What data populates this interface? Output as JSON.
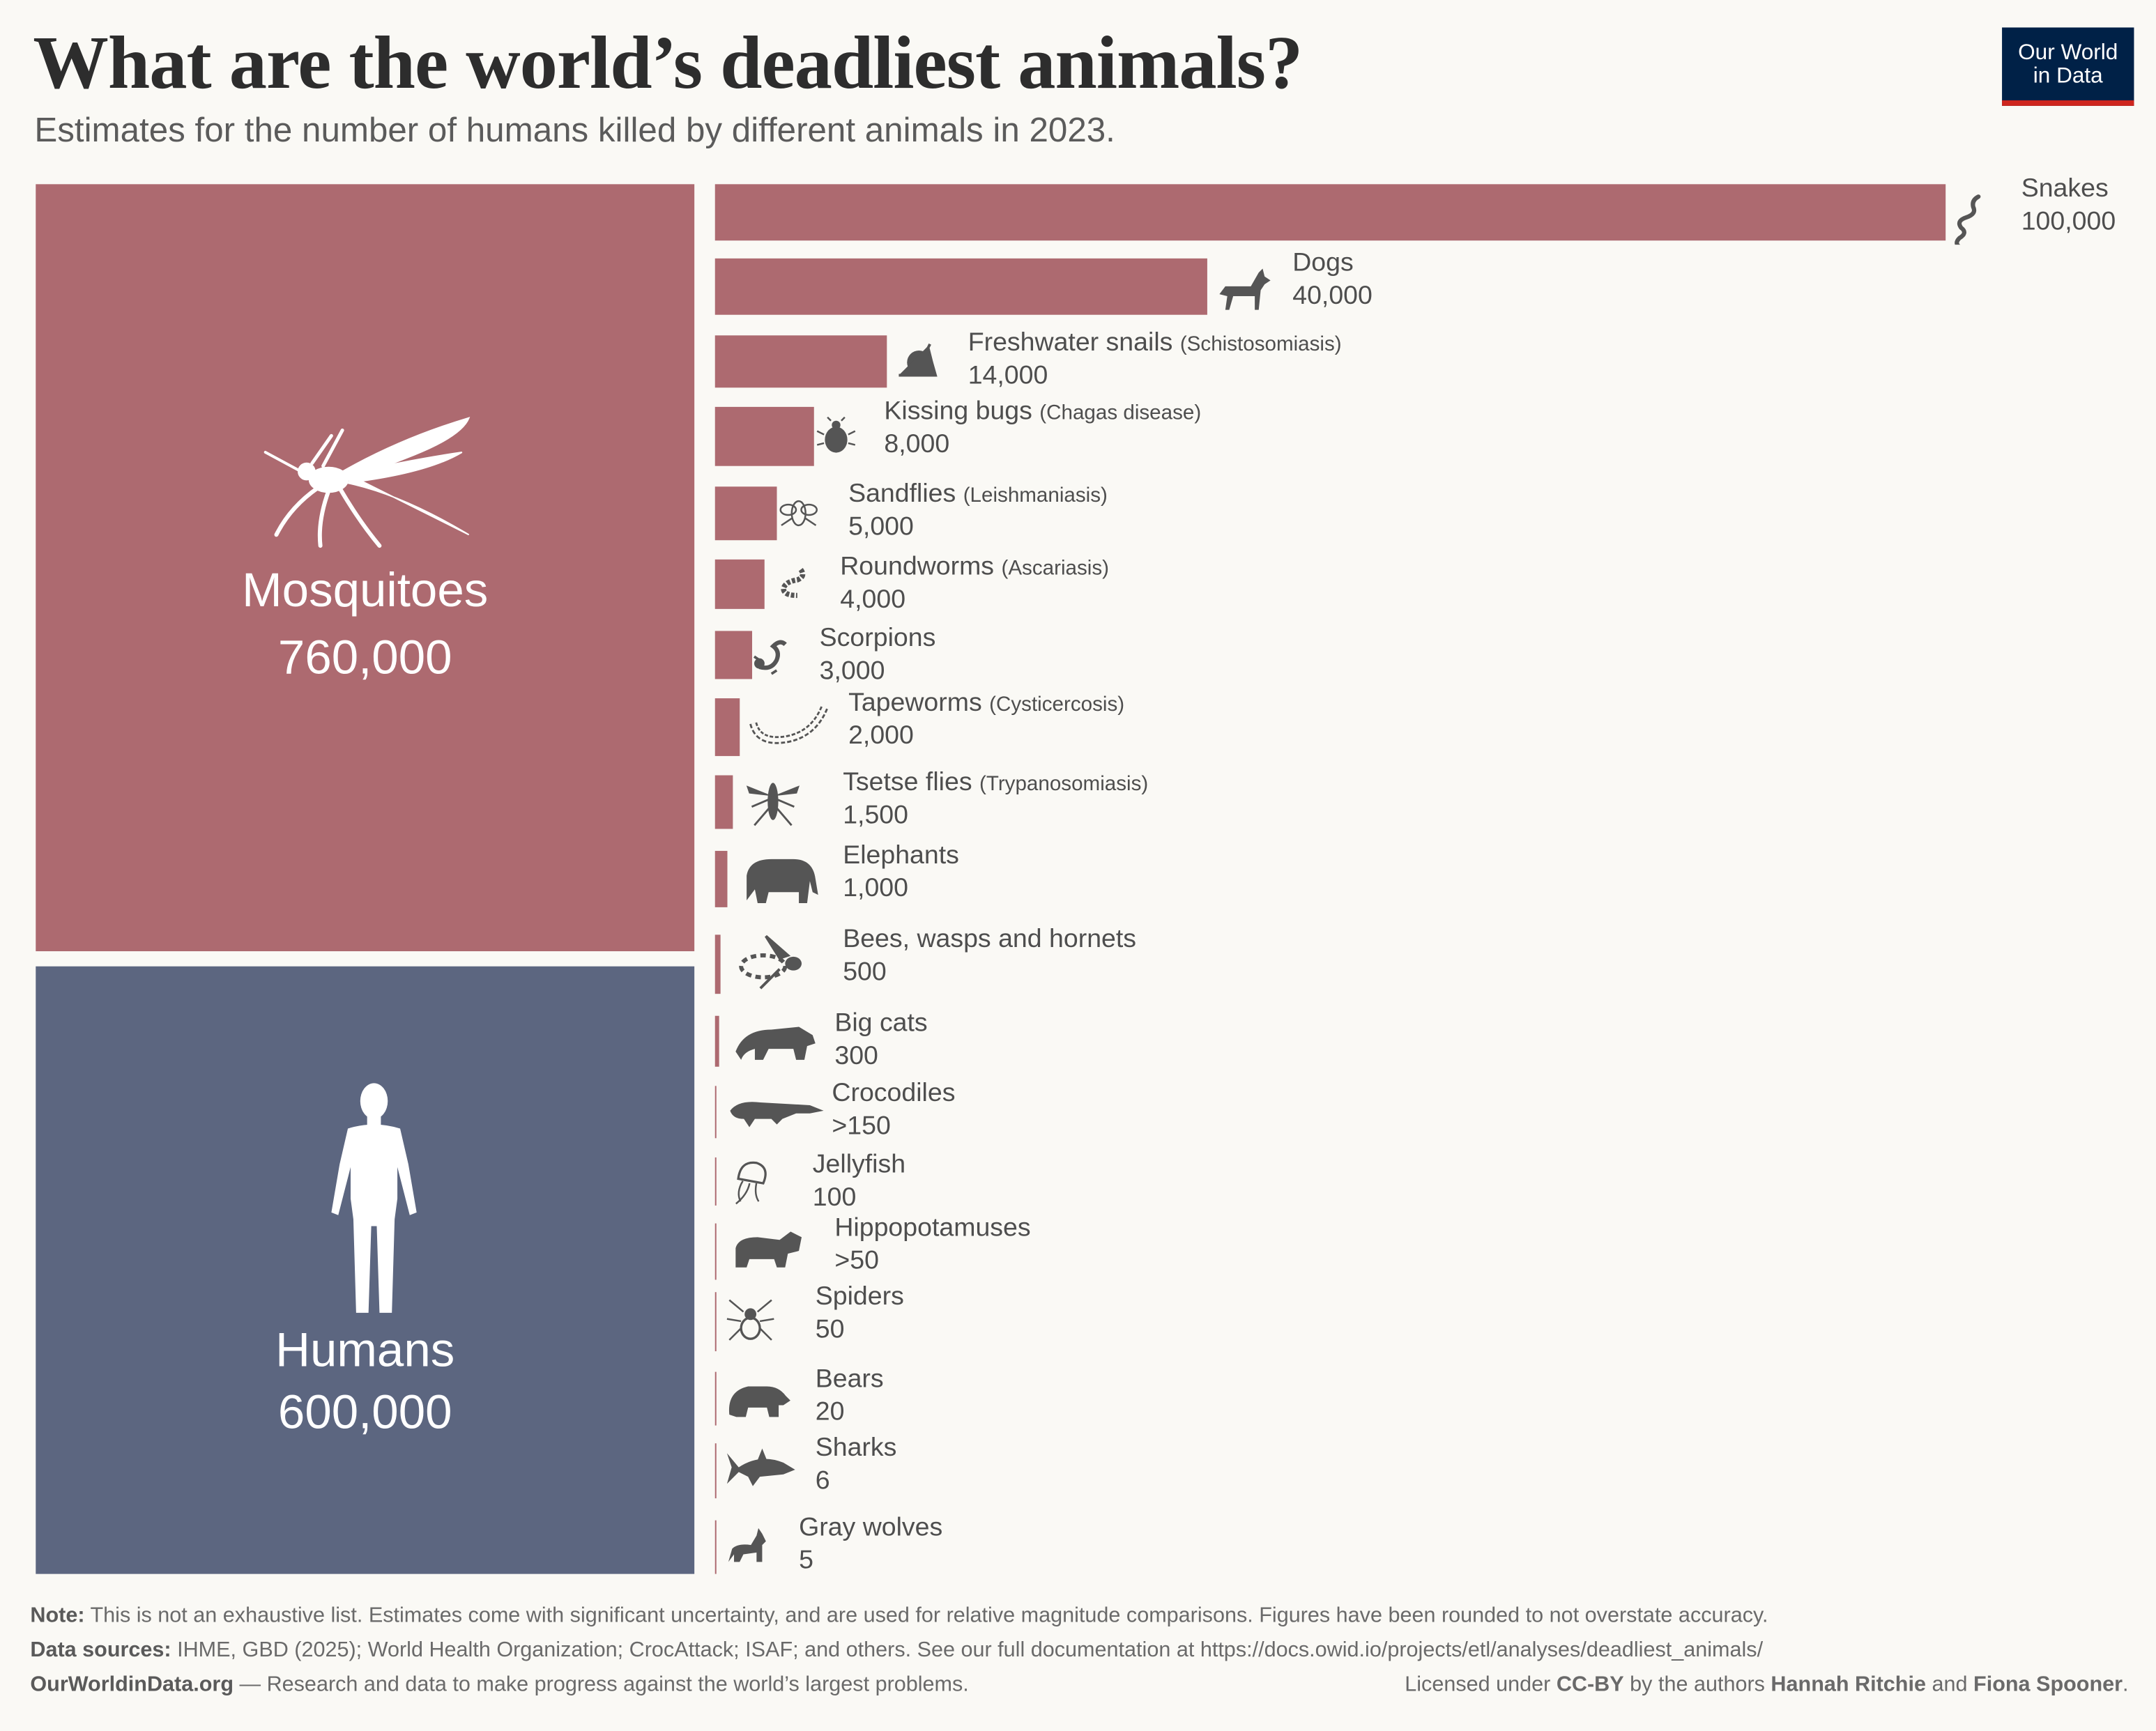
{
  "title": "What are the world’s deadliest animals?",
  "subtitle": "Estimates for the number of humans killed by different animals in 2023.",
  "logo": {
    "line1": "Our World",
    "line2": "in Data"
  },
  "colors": {
    "animal_bar": "#ad6a70",
    "humans_box": "#5c6680",
    "logo_bg": "#002147",
    "logo_accent": "#ce261e",
    "background": "#faf9f5"
  },
  "chart_data": {
    "type": "bar",
    "orientation": "horizontal",
    "encoding": "area-proportional",
    "highlights": [
      {
        "name": "Mosquitoes",
        "value": 760000,
        "value_label": "760,000",
        "icon": "mosquito-icon"
      },
      {
        "name": "Humans",
        "value": 600000,
        "value_label": "600,000",
        "icon": "human-icon"
      }
    ],
    "items": [
      {
        "name": "Snakes",
        "detail": "",
        "value": 100000,
        "value_label": "100,000",
        "icon": "snake-icon"
      },
      {
        "name": "Dogs",
        "detail": "",
        "value": 40000,
        "value_label": "40,000",
        "icon": "dog-icon"
      },
      {
        "name": "Freshwater snails",
        "detail": "(Schistosomiasis)",
        "value": 14000,
        "value_label": "14,000",
        "icon": "snail-icon"
      },
      {
        "name": "Kissing bugs",
        "detail": "(Chagas disease)",
        "value": 8000,
        "value_label": "8,000",
        "icon": "bug-icon"
      },
      {
        "name": "Sandflies",
        "detail": "(Leishmaniasis)",
        "value": 5000,
        "value_label": "5,000",
        "icon": "sandfly-icon"
      },
      {
        "name": "Roundworms",
        "detail": "(Ascariasis)",
        "value": 4000,
        "value_label": "4,000",
        "icon": "roundworm-icon"
      },
      {
        "name": "Scorpions",
        "detail": "",
        "value": 3000,
        "value_label": "3,000",
        "icon": "scorpion-icon"
      },
      {
        "name": "Tapeworms",
        "detail": "(Cysticercosis)",
        "value": 2000,
        "value_label": "2,000",
        "icon": "tapeworm-icon"
      },
      {
        "name": "Tsetse flies",
        "detail": "(Trypanosomiasis)",
        "value": 1500,
        "value_label": "1,500",
        "icon": "tsetse-fly-icon"
      },
      {
        "name": "Elephants",
        "detail": "",
        "value": 1000,
        "value_label": "1,000",
        "icon": "elephant-icon"
      },
      {
        "name": "Bees, wasps and hornets",
        "detail": "",
        "value": 500,
        "value_label": "500",
        "icon": "wasp-icon"
      },
      {
        "name": "Big cats",
        "detail": "",
        "value": 300,
        "value_label": "300",
        "icon": "big-cat-icon"
      },
      {
        "name": "Crocodiles",
        "detail": "",
        "value": 150,
        "value_label": ">150",
        "icon": "crocodile-icon"
      },
      {
        "name": "Jellyfish",
        "detail": "",
        "value": 100,
        "value_label": "100",
        "icon": "jellyfish-icon"
      },
      {
        "name": "Hippopotamuses",
        "detail": "",
        "value": 50,
        "value_label": ">50",
        "icon": "hippo-icon"
      },
      {
        "name": "Spiders",
        "detail": "",
        "value": 50,
        "value_label": "50",
        "icon": "spider-icon"
      },
      {
        "name": "Bears",
        "detail": "",
        "value": 20,
        "value_label": "20",
        "icon": "bear-icon"
      },
      {
        "name": "Sharks",
        "detail": "",
        "value": 6,
        "value_label": "6",
        "icon": "shark-icon"
      },
      {
        "name": "Gray wolves",
        "detail": "",
        "value": 5,
        "value_label": "5",
        "icon": "wolf-icon"
      }
    ]
  },
  "footer": {
    "note_label": "Note:",
    "note": " This is not an exhaustive list. Estimates come with significant uncertainty, and are used for relative magnitude comparisons. Figures have been rounded to not overstate accuracy.",
    "sources_label": "Data sources:",
    "sources": " IHME, GBD (2025); World Health Organization; CrocAttack; ISAF; and others. See our full documentation at https://docs.owid.io/projects/etl/analyses/deadliest_animals/",
    "site": "OurWorldinData.org",
    "tagline": " — Research and data to make progress against the world’s largest problems.",
    "license_pre": "Licensed under ",
    "license": "CC-BY",
    "license_mid": " by the authors ",
    "author1": "Hannah Ritchie",
    "and": " and ",
    "author2": "Fiona Spooner",
    "end": "."
  }
}
